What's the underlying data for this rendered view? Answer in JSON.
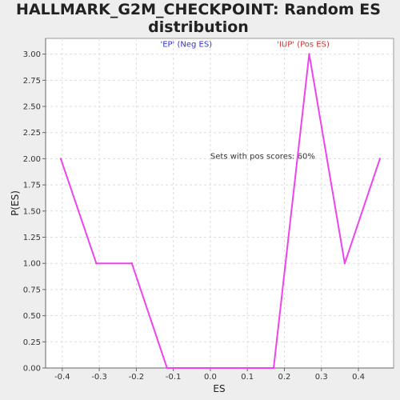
{
  "chart_data": {
    "type": "line",
    "title_lines": [
      "HALLMARK_G2M_CHECKPOINT: Random ES",
      "distribution"
    ],
    "xlabel": "ES",
    "ylabel": "P(ES)",
    "xlim": [
      -0.445,
      0.495
    ],
    "ylim": [
      0,
      3.15
    ],
    "x_ticks": [
      -0.4,
      -0.3,
      -0.2,
      -0.1,
      0.0,
      0.1,
      0.2,
      0.3,
      0.4
    ],
    "x_tick_labels": [
      "-0.4",
      "-0.3",
      "-0.2",
      "-0.1",
      "0.0",
      "0.1",
      "0.2",
      "0.3",
      "0.4"
    ],
    "y_ticks": [
      0,
      0.25,
      0.5,
      0.75,
      1.0,
      1.25,
      1.5,
      1.75,
      2.0,
      2.25,
      2.5,
      2.75,
      3.0
    ],
    "y_tick_labels": [
      "0.00",
      "0.25",
      "0.50",
      "0.75",
      "1.00",
      "1.25",
      "1.50",
      "1.75",
      "2.00",
      "2.25",
      "2.50",
      "2.75",
      "3.00"
    ],
    "grid": true,
    "line_color": "#ee44ee",
    "series": [
      {
        "x": [
          -0.404,
          -0.308,
          -0.212,
          -0.117,
          0.075,
          0.171,
          0.267,
          0.363,
          0.458
        ],
        "y": [
          2.0,
          1.0,
          1.0,
          0.0,
          0.0,
          0.0,
          3.0,
          1.0,
          2.0
        ]
      }
    ],
    "annotations": [
      {
        "text": "'EP' (Neg ES)",
        "x": -0.135,
        "y": 3.07,
        "color": "#3333cc"
      },
      {
        "text": "'IUP' (Pos ES)",
        "x": 0.18,
        "y": 3.07,
        "color": "#cc3333"
      },
      {
        "text": "Sets with pos scores: 60%",
        "x": 0.0,
        "y": 2.0,
        "color": "#333333"
      }
    ]
  }
}
